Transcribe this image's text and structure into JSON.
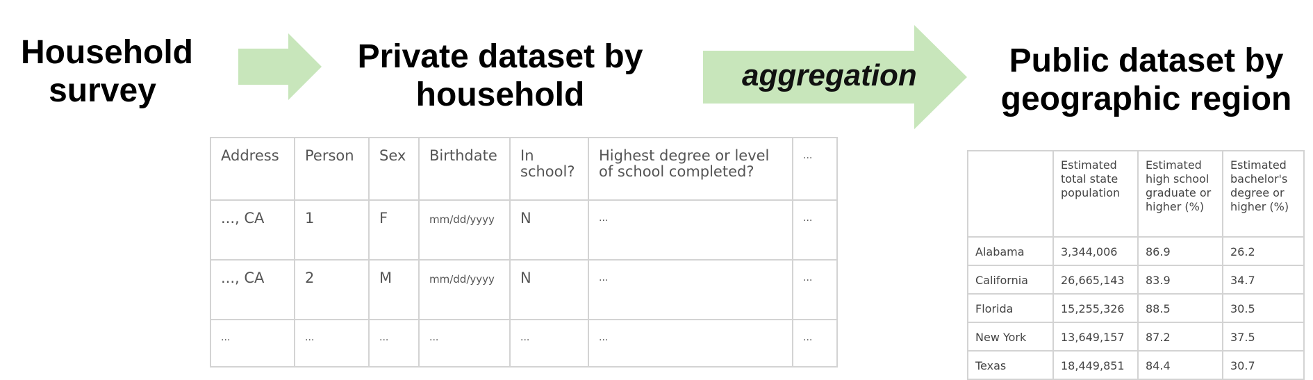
{
  "headings": {
    "household_survey": [
      "Household",
      "survey"
    ],
    "private_dataset": [
      "Private dataset by",
      "household"
    ],
    "public_dataset": [
      "Public dataset by",
      "geographic region"
    ]
  },
  "arrows": {
    "aggregation_label": "aggregation",
    "color": "#c8e6bb"
  },
  "private_table": {
    "headers": [
      "Address",
      "Person",
      "Sex",
      "Birthdate",
      "In school?",
      "Highest degree or level of school completed?",
      "..."
    ],
    "rows": [
      [
        "..., CA",
        "1",
        "F",
        "mm/dd/yyyy",
        "N",
        "...",
        "..."
      ],
      [
        "..., CA",
        "2",
        "M",
        "mm/dd/yyyy",
        "N",
        "...",
        "..."
      ],
      [
        "...",
        "...",
        "...",
        "...",
        "...",
        "...",
        "..."
      ]
    ]
  },
  "public_table": {
    "headers": [
      "",
      "Estimated total state population",
      "Estimated high school graduate or higher (%)",
      "Estimated bachelor's degree or higher (%)"
    ],
    "rows": [
      [
        "Alabama",
        "3,344,006",
        "86.9",
        "26.2"
      ],
      [
        "California",
        "26,665,143",
        "83.9",
        "34.7"
      ],
      [
        "Florida",
        "15,255,326",
        "88.5",
        "30.5"
      ],
      [
        "New York",
        "13,649,157",
        "87.2",
        "37.5"
      ],
      [
        "Texas",
        "18,449,851",
        "84.4",
        "30.7"
      ]
    ]
  }
}
